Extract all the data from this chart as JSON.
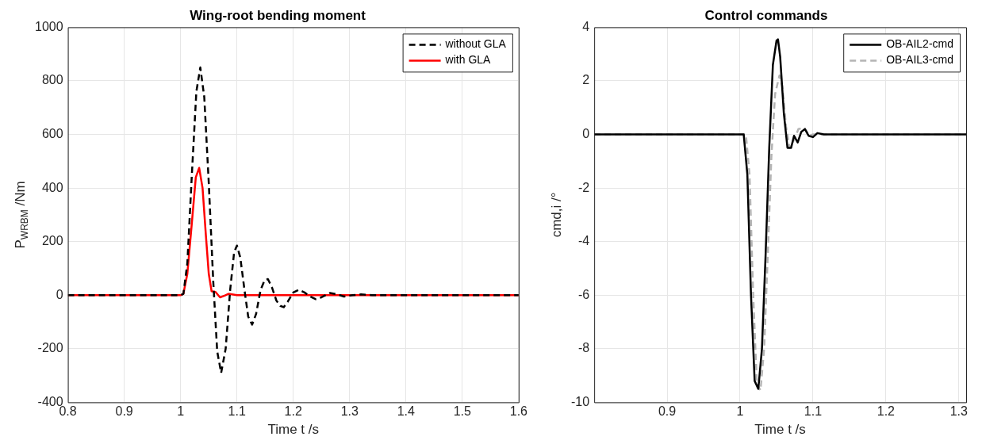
{
  "chart_data": [
    {
      "type": "line",
      "title": "Wing-root bending moment",
      "xlabel": "Time t /s",
      "ylabel": "P$_{WRBM}$ /Nm",
      "xlim": [
        0.8,
        1.6
      ],
      "xticks": [
        0.8,
        0.9,
        1,
        1.1,
        1.2,
        1.3,
        1.4,
        1.5,
        1.6
      ],
      "ylim": [
        -400,
        1000
      ],
      "yticks": [
        -400,
        -200,
        0,
        200,
        400,
        600,
        800,
        1000
      ],
      "grid": true,
      "legend": "top right",
      "series": [
        {
          "name": "without GLA",
          "color": "#000000",
          "line_style": "dashed",
          "x": [
            0.8,
            1.0,
            1.005,
            1.012,
            1.02,
            1.028,
            1.035,
            1.042,
            1.05,
            1.058,
            1.065,
            1.072,
            1.08,
            1.088,
            1.095,
            1.1,
            1.106,
            1.114,
            1.12,
            1.127,
            1.134,
            1.142,
            1.149,
            1.155,
            1.162,
            1.17,
            1.177,
            1.183,
            1.19,
            1.2,
            1.21,
            1.22,
            1.23,
            1.24,
            1.25,
            1.265,
            1.278,
            1.29,
            1.305,
            1.32,
            1.34,
            1.36,
            1.6
          ],
          "values": [
            0,
            0,
            5,
            120,
            450,
            760,
            850,
            740,
            420,
            50,
            -210,
            -290,
            -200,
            20,
            160,
            185,
            140,
            10,
            -80,
            -110,
            -70,
            20,
            55,
            60,
            30,
            -20,
            -40,
            -45,
            -25,
            10,
            20,
            10,
            -5,
            -15,
            -8,
            8,
            3,
            -5,
            0,
            3,
            0,
            0,
            0
          ]
        },
        {
          "name": "with GLA",
          "color": "#ff0000",
          "line_style": "solid",
          "x": [
            0.8,
            1.0,
            1.005,
            1.012,
            1.02,
            1.027,
            1.033,
            1.039,
            1.045,
            1.05,
            1.055,
            1.062,
            1.07,
            1.078,
            1.085,
            1.1,
            1.6
          ],
          "values": [
            0,
            0,
            5,
            80,
            270,
            440,
            475,
            400,
            220,
            80,
            15,
            12,
            -8,
            -2,
            5,
            0,
            0
          ]
        }
      ]
    },
    {
      "type": "line",
      "title": "Control commands",
      "xlabel": "Time t /s",
      "ylabel": "cmd,i /°",
      "xlim": [
        0.8,
        1.31
      ],
      "xticks": [
        0.9,
        1,
        1.1,
        1.2,
        1.3
      ],
      "ylim": [
        -10,
        4
      ],
      "yticks": [
        -10,
        -8,
        -6,
        -4,
        -2,
        0,
        2,
        4
      ],
      "grid": true,
      "legend": "top right",
      "series": [
        {
          "name": "OB-AIL2-cmd",
          "color": "#000000",
          "line_style": "solid",
          "x": [
            0.8,
            1.005,
            1.01,
            1.015,
            1.02,
            1.025,
            1.03,
            1.035,
            1.04,
            1.045,
            1.05,
            1.052,
            1.055,
            1.06,
            1.065,
            1.07,
            1.074,
            1.079,
            1.084,
            1.089,
            1.094,
            1.1,
            1.106,
            1.115,
            1.31
          ],
          "values": [
            0,
            0,
            -1.5,
            -6,
            -9.2,
            -9.5,
            -8,
            -4.5,
            -0.5,
            2.6,
            3.5,
            3.55,
            2.9,
            0.8,
            -0.5,
            -0.5,
            -0.05,
            -0.3,
            0.1,
            0.2,
            -0.05,
            -0.1,
            0.05,
            0,
            0
          ]
        },
        {
          "name": "OB-AIL3-cmd",
          "color": "#b4b4b4",
          "line_style": "dashed",
          "x": [
            0.8,
            1.008,
            1.013,
            1.018,
            1.023,
            1.028,
            1.033,
            1.038,
            1.043,
            1.048,
            1.054,
            1.058,
            1.063,
            1.068,
            1.074,
            1.08,
            1.088,
            1.095,
            1.1,
            1.31
          ],
          "values": [
            0,
            0,
            -1.5,
            -6,
            -9.3,
            -9.55,
            -8,
            -4.5,
            -0.8,
            1.5,
            2.2,
            1.8,
            0.3,
            -0.5,
            -0.2,
            0.2,
            0.25,
            -0.05,
            0,
            0
          ]
        }
      ]
    }
  ]
}
